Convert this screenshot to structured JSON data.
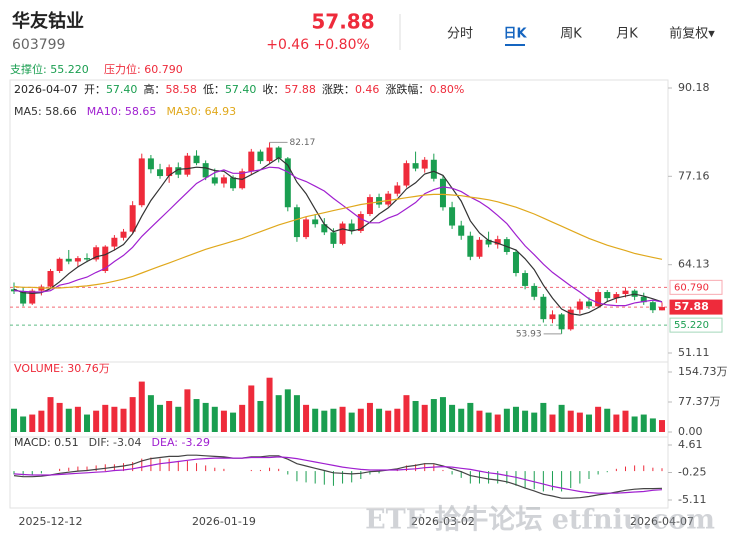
{
  "header": {
    "name": "华友钴业",
    "code": "603799",
    "price": "57.88",
    "change": "+0.46 +0.80%",
    "tabs": [
      "分时",
      "日K",
      "周K",
      "月K",
      "前复权▾"
    ],
    "support": "支撑位: 55.220",
    "pressure": "压力位: 60.790",
    "watermark": "ETF 拾牛论坛 etfniu.com"
  },
  "chart_data": [
    {
      "type": "candlestick",
      "up_color": "#ee2b3b",
      "down_color": "#1a9e50",
      "info": [
        {
          "label": "2026-04-07",
          "color": "#222"
        },
        {
          "label": "开：",
          "value": "57.40",
          "color": "#1a9e50"
        },
        {
          "label": "高：",
          "value": "58.58",
          "color": "#ee2b3b"
        },
        {
          "label": "低：",
          "value": "57.40",
          "color": "#1a9e50"
        },
        {
          "label": "收：",
          "value": "57.88",
          "color": "#ee2b3b"
        },
        {
          "label": "涨跌：",
          "value": "0.46",
          "color": "#ee2b3b"
        },
        {
          "label": "涨跌幅：",
          "value": "0.80%",
          "color": "#ee2b3b"
        }
      ],
      "categories": [
        null,
        null,
        null,
        null,
        "2025-12-12",
        null,
        null,
        null,
        null,
        null,
        null,
        null,
        null,
        null,
        null,
        null,
        null,
        null,
        null,
        null,
        null,
        null,
        null,
        "2026-01-19",
        null,
        null,
        null,
        null,
        null,
        null,
        null,
        null,
        null,
        null,
        null,
        null,
        null,
        null,
        null,
        null,
        null,
        null,
        null,
        null,
        null,
        null,
        null,
        "2026-03-02",
        null,
        null,
        null,
        null,
        null,
        null,
        null,
        null,
        null,
        null,
        null,
        null,
        null,
        null,
        null,
        null,
        null,
        null,
        null,
        null,
        null,
        null,
        null,
        "2026-04-07"
      ],
      "candles": [
        [
          60.5,
          61.5,
          59.8,
          60.2
        ],
        [
          60.2,
          60.8,
          58.0,
          58.4
        ],
        [
          58.4,
          60.6,
          58.2,
          60.3
        ],
        [
          60.3,
          61.2,
          59.6,
          60.9
        ],
        [
          60.9,
          63.5,
          60.6,
          63.2
        ],
        [
          63.2,
          65.2,
          62.9,
          65.0
        ],
        [
          65.0,
          66.3,
          64.2,
          64.6
        ],
        [
          64.6,
          65.4,
          63.8,
          65.1
        ],
        [
          65.1,
          65.8,
          64.5,
          64.9
        ],
        [
          64.9,
          67.0,
          64.6,
          66.7
        ],
        [
          63.2,
          67.0,
          62.9,
          66.8
        ],
        [
          66.8,
          68.5,
          66.2,
          68.1
        ],
        [
          68.1,
          69.4,
          67.7,
          69.0
        ],
        [
          69.0,
          73.5,
          68.8,
          72.9
        ],
        [
          72.9,
          80.5,
          72.6,
          79.8
        ],
        [
          79.8,
          80.3,
          77.6,
          78.2
        ],
        [
          78.2,
          79.0,
          76.8,
          77.2
        ],
        [
          77.2,
          78.9,
          76.2,
          78.5
        ],
        [
          78.5,
          79.2,
          76.9,
          77.4
        ],
        [
          77.4,
          80.6,
          77.1,
          80.2
        ],
        [
          80.2,
          81.0,
          78.8,
          79.1
        ],
        [
          79.1,
          79.5,
          76.6,
          77.0
        ],
        [
          77.0,
          78.3,
          75.8,
          76.1
        ],
        [
          76.1,
          77.4,
          75.5,
          77.0
        ],
        [
          77.0,
          77.3,
          75.0,
          75.4
        ],
        [
          75.4,
          78.3,
          75.2,
          77.9
        ],
        [
          77.9,
          81.2,
          77.5,
          80.8
        ],
        [
          80.8,
          81.1,
          79.0,
          79.4
        ],
        [
          79.4,
          82.17,
          79.1,
          81.4
        ],
        [
          81.4,
          81.6,
          79.2,
          79.8
        ],
        [
          79.8,
          80.0,
          72.0,
          72.6
        ],
        [
          72.6,
          73.0,
          67.5,
          68.2
        ],
        [
          68.2,
          71.2,
          67.9,
          70.8
        ],
        [
          70.8,
          71.6,
          69.6,
          70.1
        ],
        [
          70.1,
          71.0,
          68.5,
          68.9
        ],
        [
          68.9,
          69.5,
          66.6,
          67.2
        ],
        [
          67.2,
          70.5,
          67.0,
          70.2
        ],
        [
          70.2,
          70.8,
          68.6,
          69.1
        ],
        [
          69.1,
          72.0,
          68.8,
          71.6
        ],
        [
          71.6,
          74.5,
          71.3,
          74.1
        ],
        [
          74.1,
          74.6,
          72.5,
          73.0
        ],
        [
          73.0,
          75.0,
          72.7,
          74.6
        ],
        [
          74.6,
          76.3,
          74.2,
          75.8
        ],
        [
          75.8,
          79.5,
          75.5,
          79.1
        ],
        [
          79.1,
          80.8,
          77.9,
          78.3
        ],
        [
          78.3,
          80.0,
          77.7,
          79.6
        ],
        [
          79.6,
          80.5,
          76.4,
          76.8
        ],
        [
          76.8,
          77.2,
          72.1,
          72.6
        ],
        [
          72.6,
          73.4,
          69.4,
          69.9
        ],
        [
          69.9,
          70.6,
          67.8,
          68.4
        ],
        [
          68.4,
          69.0,
          64.8,
          65.3
        ],
        [
          65.3,
          68.2,
          65.0,
          67.8
        ],
        [
          67.8,
          69.0,
          66.7,
          67.1
        ],
        [
          67.1,
          68.4,
          66.5,
          67.9
        ],
        [
          67.9,
          68.2,
          65.6,
          66.0
        ],
        [
          66.0,
          66.4,
          62.4,
          62.9
        ],
        [
          62.9,
          63.3,
          60.5,
          61.0
        ],
        [
          61.0,
          61.4,
          58.9,
          59.4
        ],
        [
          59.4,
          59.8,
          55.6,
          56.1
        ],
        [
          56.1,
          57.4,
          55.5,
          56.8
        ],
        [
          56.8,
          57.0,
          53.93,
          54.6
        ],
        [
          54.6,
          57.9,
          54.4,
          57.5
        ],
        [
          57.5,
          59.1,
          56.9,
          58.7
        ],
        [
          58.7,
          59.3,
          57.6,
          58.0
        ],
        [
          58.0,
          60.5,
          57.8,
          60.1
        ],
        [
          60.1,
          60.4,
          58.7,
          59.2
        ],
        [
          59.2,
          60.1,
          58.5,
          59.8
        ],
        [
          59.8,
          60.79,
          59.3,
          60.3
        ],
        [
          60.3,
          60.5,
          58.9,
          59.4
        ],
        [
          59.4,
          60.0,
          58.2,
          58.6
        ],
        [
          58.6,
          58.9,
          57.0,
          57.42
        ],
        [
          57.4,
          58.58,
          57.4,
          57.88
        ]
      ],
      "series": [
        {
          "name": "MA5: 58.66",
          "color": "#333333",
          "values": [
            60.5,
            60.0,
            59.9,
            60.0,
            60.6,
            61.6,
            62.8,
            63.8,
            64.6,
            65.3,
            65.6,
            66.3,
            67.1,
            68.7,
            71.3,
            73.6,
            75.4,
            77.3,
            78.2,
            78.3,
            78.5,
            78.4,
            78.0,
            77.9,
            76.9,
            76.7,
            77.4,
            78.1,
            79.0,
            79.9,
            78.8,
            76.3,
            74.6,
            72.3,
            70.1,
            69.0,
            69.4,
            69.1,
            69.4,
            70.4,
            71.6,
            72.5,
            73.8,
            75.3,
            76.2,
            77.5,
            77.9,
            77.3,
            75.4,
            73.5,
            70.6,
            68.8,
            67.7,
            67.3,
            66.8,
            66.3,
            65.0,
            63.4,
            61.1,
            59.2,
            57.6,
            56.9,
            56.7,
            57.1,
            57.8,
            58.7,
            59.2,
            59.5,
            59.8,
            59.5,
            59.1,
            58.66
          ]
        },
        {
          "name": "MA10: 58.65",
          "color": "#a020d0",
          "values": [
            60.3,
            60.2,
            60.1,
            60.1,
            60.3,
            61.1,
            61.4,
            61.9,
            62.3,
            63.0,
            63.6,
            64.6,
            65.5,
            66.7,
            68.3,
            69.6,
            70.9,
            72.2,
            73.5,
            74.8,
            76.1,
            76.9,
            77.7,
            78.1,
            77.6,
            77.6,
            77.9,
            78.1,
            78.5,
            78.4,
            77.8,
            76.9,
            76.4,
            75.7,
            75.0,
            73.9,
            72.9,
            71.9,
            70.9,
            70.3,
            70.3,
            71.0,
            71.5,
            72.4,
            73.3,
            74.6,
            75.2,
            75.6,
            75.4,
            74.9,
            74.1,
            73.4,
            72.5,
            71.4,
            70.2,
            68.5,
            66.9,
            65.6,
            64.2,
            63.0,
            62.0,
            61.0,
            60.1,
            59.1,
            58.5,
            58.2,
            58.1,
            58.1,
            58.5,
            58.7,
            58.9,
            58.65
          ]
        },
        {
          "name": "MA30: 64.93",
          "color": "#e0a81c",
          "values": [
            60.9,
            60.8,
            60.8,
            60.7,
            60.7,
            60.7,
            60.8,
            60.9,
            61.0,
            61.2,
            61.4,
            61.7,
            62.0,
            62.4,
            62.9,
            63.4,
            63.9,
            64.4,
            64.9,
            65.4,
            65.9,
            66.4,
            66.8,
            67.2,
            67.6,
            68.0,
            68.5,
            69.0,
            69.5,
            70.0,
            70.4,
            70.8,
            71.2,
            71.5,
            71.8,
            72.1,
            72.4,
            72.7,
            73.0,
            73.2,
            73.4,
            73.6,
            73.8,
            74.0,
            74.2,
            74.4,
            74.5,
            74.5,
            74.4,
            74.3,
            74.1,
            73.9,
            73.7,
            73.4,
            73.0,
            72.6,
            72.1,
            71.6,
            71.0,
            70.4,
            69.8,
            69.2,
            68.6,
            68.0,
            67.5,
            67.0,
            66.6,
            66.2,
            65.8,
            65.5,
            65.2,
            64.93
          ]
        }
      ],
      "levels": [
        {
          "value": 60.79,
          "label": "60.790",
          "color": "#ee2b3b"
        },
        {
          "value": 57.88,
          "label": "57.88",
          "color": "#ee2b3b"
        },
        {
          "value": 55.22,
          "label": "55.220",
          "color": "#1a9e50"
        }
      ],
      "ylim": [
        51.11,
        90.18
      ],
      "yticks": [
        90.18,
        77.16,
        64.13,
        51.11
      ],
      "grid": false
    },
    {
      "type": "bar",
      "title": "VOLUME: 30.76万",
      "color": "#ee2b3b",
      "values": [
        60,
        40,
        45,
        55,
        90,
        75,
        60,
        65,
        45,
        55,
        70,
        65,
        60,
        90,
        130,
        95,
        70,
        80,
        65,
        110,
        85,
        75,
        65,
        55,
        50,
        70,
        120,
        80,
        140,
        95,
        110,
        95,
        70,
        60,
        55,
        60,
        65,
        50,
        60,
        75,
        60,
        55,
        60,
        95,
        80,
        70,
        85,
        90,
        70,
        60,
        75,
        55,
        50,
        45,
        60,
        65,
        55,
        50,
        75,
        45,
        70,
        55,
        50,
        45,
        65,
        60,
        45,
        55,
        40,
        45,
        35,
        30.76
      ],
      "ylim": [
        0,
        154.73
      ],
      "yticks": [
        {
          "value": 154.73,
          "label": "154.73万"
        },
        {
          "value": 77.37,
          "label": "77.37万"
        },
        {
          "value": 0,
          "label": "0.00"
        }
      ]
    },
    {
      "type": "macd",
      "title": "MACD: 0.51",
      "up_color": "#ee2b3b",
      "down_color": "#1a9e50",
      "values": [
        -0.6,
        -0.8,
        -0.6,
        -0.4,
        0.0,
        0.4,
        0.6,
        0.8,
        0.8,
        1.0,
        1.2,
        1.2,
        1.4,
        1.6,
        2.2,
        2.4,
        2.2,
        2.2,
        1.8,
        1.8,
        1.4,
        1.0,
        0.6,
        0.4,
        0.0,
        0.0,
        0.2,
        0.2,
        0.6,
        0.4,
        -0.6,
        -1.8,
        -2.0,
        -2.2,
        -2.4,
        -2.6,
        -2.2,
        -2.0,
        -1.4,
        -0.6,
        -0.4,
        0.0,
        0.4,
        1.0,
        1.2,
        1.4,
        1.2,
        0.2,
        -0.6,
        -1.2,
        -2.2,
        -2.2,
        -2.2,
        -2.2,
        -2.2,
        -2.6,
        -3.0,
        -3.2,
        -3.6,
        -3.4,
        -3.6,
        -3.0,
        -2.2,
        -1.4,
        -0.6,
        -0.2,
        0.4,
        0.8,
        1.0,
        1.0,
        0.6,
        0.51
      ],
      "series": [
        {
          "name": "DIF: -3.04",
          "color": "#444444",
          "values": [
            -0.8,
            -1.0,
            -1.0,
            -0.9,
            -0.7,
            -0.4,
            -0.2,
            0.0,
            0.1,
            0.3,
            0.5,
            0.7,
            0.9,
            1.2,
            1.8,
            2.2,
            2.4,
            2.6,
            2.6,
            2.8,
            2.8,
            2.7,
            2.6,
            2.5,
            2.3,
            2.3,
            2.5,
            2.5,
            2.7,
            2.7,
            2.1,
            1.3,
            0.9,
            0.5,
            0.1,
            -0.3,
            -0.4,
            -0.5,
            -0.4,
            -0.1,
            0.0,
            0.2,
            0.4,
            0.8,
            1.0,
            1.3,
            1.3,
            0.9,
            0.4,
            -0.1,
            -0.8,
            -1.1,
            -1.4,
            -1.6,
            -1.9,
            -2.4,
            -3.0,
            -3.5,
            -4.1,
            -4.4,
            -4.8,
            -4.8,
            -4.7,
            -4.5,
            -4.2,
            -4.0,
            -3.7,
            -3.4,
            -3.2,
            -3.1,
            -3.1,
            -3.04
          ]
        },
        {
          "name": "DEA: -3.29",
          "color": "#a020d0",
          "values": [
            -0.5,
            -0.6,
            -0.7,
            -0.7,
            -0.7,
            -0.6,
            -0.5,
            -0.4,
            -0.3,
            -0.2,
            -0.1,
            0.1,
            0.2,
            0.4,
            0.7,
            1.0,
            1.3,
            1.5,
            1.7,
            1.9,
            2.1,
            2.2,
            2.3,
            2.3,
            2.3,
            2.3,
            2.4,
            2.4,
            2.4,
            2.5,
            2.4,
            2.2,
            1.9,
            1.6,
            1.3,
            1.0,
            0.7,
            0.5,
            0.3,
            0.2,
            0.2,
            0.2,
            0.2,
            0.3,
            0.4,
            0.6,
            0.7,
            0.8,
            0.7,
            0.5,
            0.3,
            0.0,
            -0.3,
            -0.5,
            -0.8,
            -1.1,
            -1.5,
            -1.9,
            -2.3,
            -2.7,
            -3.0,
            -3.3,
            -3.6,
            -3.8,
            -3.9,
            -3.9,
            -3.9,
            -3.8,
            -3.7,
            -3.6,
            -3.4,
            -3.29
          ]
        }
      ],
      "ylim": [
        -5.11,
        4.61
      ],
      "yticks": [
        4.61,
        -0.25,
        -5.11
      ]
    }
  ]
}
